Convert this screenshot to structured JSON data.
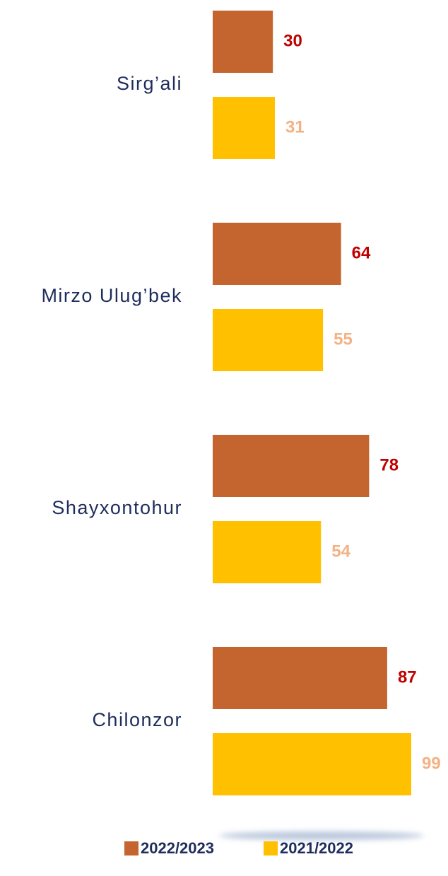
{
  "chart_data": {
    "type": "bar",
    "orientation": "horizontal",
    "categories": [
      "Sirg’ali",
      "Mirzo Ulug’bek",
      "Shayxontohur",
      "Chilonzor"
    ],
    "series": [
      {
        "name": "2022/2023",
        "color": "#c4652f",
        "label_color": "#c00000",
        "values": [
          30,
          64,
          78,
          87
        ]
      },
      {
        "name": "2021/2022",
        "color": "#ffc000",
        "label_color": "#f4b183",
        "values": [
          31,
          55,
          54,
          99
        ]
      }
    ],
    "legend": "bottom"
  }
}
